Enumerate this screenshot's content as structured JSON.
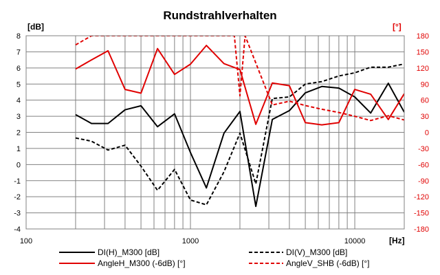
{
  "chart_data": {
    "type": "line",
    "title": "Rundstrahlverhalten",
    "ylabel": "[dB]",
    "y2label": "[°]",
    "xlabel": "[Hz]",
    "xscale": "log",
    "xlim": [
      100,
      20000
    ],
    "ylim": [
      -4,
      8
    ],
    "y2lim": [
      -180,
      180
    ],
    "grid": true,
    "legend_placement": "bottom",
    "xticks": [
      {
        "value": 100,
        "label": "100"
      },
      {
        "value": 1000,
        "label": "1000"
      },
      {
        "value": 10000,
        "label": "10000"
      }
    ],
    "yticks": [
      "8",
      "7",
      "6",
      "5",
      "4",
      "3",
      "2",
      "1",
      "0",
      "-1",
      "-2",
      "-3",
      "-4"
    ],
    "y2ticks": [
      "180",
      "150",
      "120",
      "90",
      "60",
      "30",
      "0",
      "-30",
      "-60",
      "-90",
      "-120",
      "-150",
      "-180"
    ],
    "series": [
      {
        "name": "DI(H)_M300 [dB]",
        "axis": "left",
        "color": "#000000",
        "dash": "solid",
        "x": [
          200,
          250,
          315,
          400,
          500,
          630,
          800,
          1000,
          1250,
          1600,
          2000,
          2500,
          3150,
          4000,
          5000,
          6300,
          8000,
          10000,
          12500,
          16000,
          20000
        ],
        "values": [
          3.1,
          2.55,
          2.55,
          3.4,
          3.65,
          2.35,
          3.15,
          0.75,
          -1.45,
          1.95,
          3.3,
          -2.6,
          2.8,
          3.35,
          4.45,
          4.85,
          4.75,
          4.2,
          3.2,
          5.05,
          3.25
        ]
      },
      {
        "name": "DI(V)_M300 [dB]",
        "axis": "left",
        "color": "#000000",
        "dash": "dashed",
        "x": [
          200,
          250,
          315,
          400,
          500,
          630,
          800,
          1000,
          1250,
          1600,
          2000,
          2500,
          3150,
          4000,
          5000,
          6300,
          8000,
          10000,
          12500,
          16000,
          20000
        ],
        "values": [
          1.65,
          1.45,
          0.9,
          1.2,
          -0.1,
          -1.6,
          -0.3,
          -2.2,
          -2.5,
          -0.45,
          1.95,
          -1.2,
          4.1,
          4.2,
          5.0,
          5.15,
          5.5,
          5.7,
          6.05,
          6.05,
          6.25
        ]
      },
      {
        "name": "AngleH_M300 (-6dB) [°]",
        "axis": "right",
        "color": "#e00000",
        "dash": "solid",
        "x": [
          200,
          250,
          315,
          400,
          500,
          630,
          800,
          1000,
          1250,
          1600,
          2000,
          2500,
          3150,
          4000,
          5000,
          6300,
          8000,
          10000,
          12500,
          16000,
          20000
        ],
        "values": [
          118,
          135,
          152,
          80,
          73,
          156,
          108,
          127,
          162,
          128,
          117,
          15,
          92,
          87,
          18,
          14,
          18,
          80,
          71,
          24,
          72
        ]
      },
      {
        "name": "AngleV_SHB (-6dB) [°]",
        "axis": "right",
        "color": "#e00000",
        "dash": "dashed",
        "x": [
          200,
          250,
          1850,
          2000,
          2150,
          3150,
          4000,
          5000,
          6300,
          8000,
          10000,
          12500,
          16000,
          20000
        ],
        "values": [
          163,
          180,
          180,
          68,
          180,
          51,
          58,
          50,
          43,
          37,
          30,
          22,
          31,
          23
        ]
      }
    ]
  }
}
